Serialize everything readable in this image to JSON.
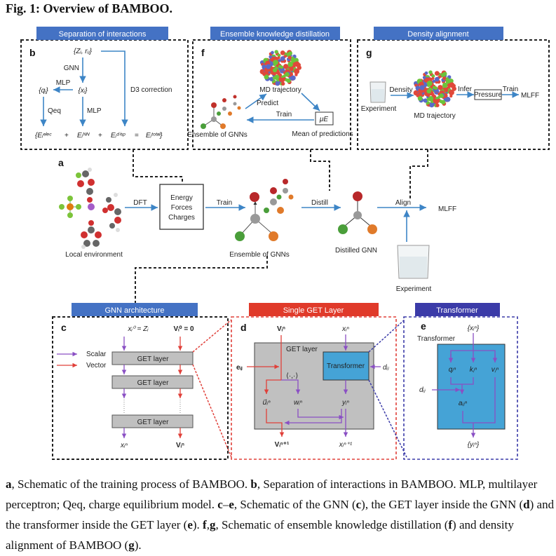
{
  "title": "Fig. 1: Overview of BAMBOO.",
  "colors": {
    "header_blue": "#4472c4",
    "header_red": "#e03a2a",
    "header_darkblue": "#3b3ba8",
    "arrow_blue": "#3d85c6",
    "scalar": "#8a4fc4",
    "vector": "#e0403a",
    "transformer_fill": "#45a3d6",
    "get_fill": "#c0c0c0"
  },
  "panel_b": {
    "header": "Separation of interactions",
    "label": "b",
    "zr": "{Zᵢ, rᵢⱼ}",
    "gnn": "GNN",
    "x": "{xᵢ}",
    "mlp1": "MLP",
    "q": "{qᵢ}",
    "qeq": "Qeq",
    "mlp2": "MLP",
    "d3": "D3 correction",
    "e_elec": "{Eᵢᵉˡᵉᶜ",
    "plus": "+",
    "e_nn": "Eᵢᴺᴺ",
    "e_disp": "Eᵢᵈⁱˢᵖ",
    "eq": "=",
    "e_total": "Eᵢᵗᵒᵗᵃˡ}"
  },
  "panel_f": {
    "header": "Ensemble knowledge distillation",
    "label": "f",
    "md": "MD trajectory",
    "predict": "Predict",
    "train": "Train",
    "mu": "μE",
    "mean": "Mean of predictions",
    "ensemble": "Ensemble of GNNs"
  },
  "panel_g": {
    "header": "Density alignment",
    "label": "g",
    "experiment": "Experiment",
    "density": "Density",
    "md": "MD trajectory",
    "infer": "Infer",
    "pressure": "Pressure",
    "train": "Train",
    "mlff": "MLFF"
  },
  "panel_a": {
    "label": "a",
    "local": "Local environment",
    "dft": "DFT",
    "box": [
      "Energy",
      "Forces",
      "Charges"
    ],
    "train": "Train",
    "ensemble": "Ensemble of GNNs",
    "distill": "Distill",
    "distilled": "Distilled GNN",
    "align": "Align",
    "mlff": "MLFF",
    "experiment": "Experiment"
  },
  "panel_c": {
    "header": "GNN architecture",
    "label": "c",
    "x0": "xᵢ⁰ = Zᵢ",
    "v0": "Vᵢ⁰ = 0",
    "scalar": "Scalar",
    "vector": "Vector",
    "layer": "GET layer",
    "xn": "xᵢⁿ",
    "vn": "Vᵢⁿ"
  },
  "panel_d": {
    "header": "Single GET Layer",
    "label": "d",
    "vn": "Vᵢⁿ",
    "xn": "xᵢⁿ",
    "get": "GET layer",
    "transformer": "Transformer",
    "dij": "dᵢⱼ",
    "eij": "eᵢⱼ",
    "inner": "⟨·,·⟩",
    "u": "u⃗ᵢⁿ",
    "w": "wᵢⁿ",
    "y": "yᵢⁿ",
    "vn1": "Vᵢⁿ⁺¹",
    "xn1": "xᵢⁿ⁺¹"
  },
  "panel_e": {
    "header": "Transformer",
    "label": "e",
    "xin": "{xᵢⁿ}",
    "transformer": "Transformer",
    "q": "qᵢⁿ",
    "k": "kⱼⁿ",
    "v": "vⱼⁿ",
    "dij": "dᵢⱼ",
    "a": "aᵢⱼⁿ",
    "yout": "{yᵢⁿ}"
  },
  "caption": [
    {
      "b": "a"
    },
    {
      "t": ", Schematic of the training process of BAMBOO. "
    },
    {
      "b": "b"
    },
    {
      "t": ", Separation of interactions in BAMBOO. MLP, multilayer perceptron; Qeq, charge equilibrium model. "
    },
    {
      "b": "c"
    },
    {
      "t": "–"
    },
    {
      "b": "e"
    },
    {
      "t": ", Schematic of the GNN ("
    },
    {
      "b": "c"
    },
    {
      "t": "), the GET layer inside the GNN ("
    },
    {
      "b": "d"
    },
    {
      "t": ") and the transformer inside the GET layer ("
    },
    {
      "b": "e"
    },
    {
      "t": "). "
    },
    {
      "b": "f"
    },
    {
      "t": ","
    },
    {
      "b": "g"
    },
    {
      "t": ", Schematic of ensemble knowledge distillation ("
    },
    {
      "b": "f"
    },
    {
      "t": ") and density alignment of BAMBOO ("
    },
    {
      "b": "g"
    },
    {
      "t": ")."
    }
  ]
}
